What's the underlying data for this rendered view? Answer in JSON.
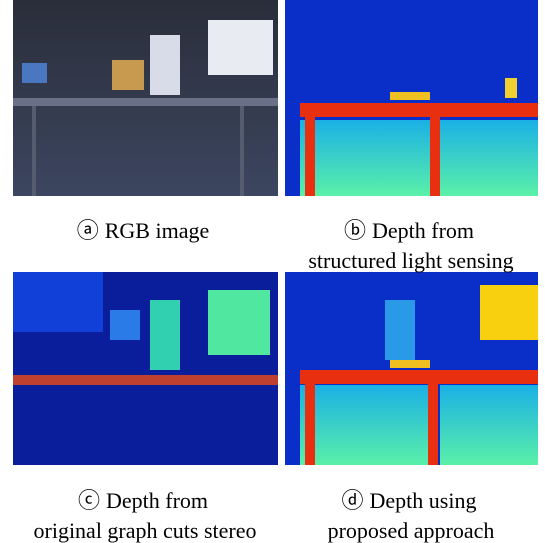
{
  "panels": [
    {
      "label": "ⓐ",
      "lines": [
        "RGB image"
      ]
    },
    {
      "label": "ⓑ",
      "lines": [
        "Depth from",
        "structured light sensing"
      ]
    },
    {
      "label": "ⓒ",
      "lines": [
        "Depth from",
        "original graph cuts stereo"
      ]
    },
    {
      "label": "ⓓ",
      "lines": [
        "Depth using",
        "proposed approach"
      ]
    }
  ]
}
